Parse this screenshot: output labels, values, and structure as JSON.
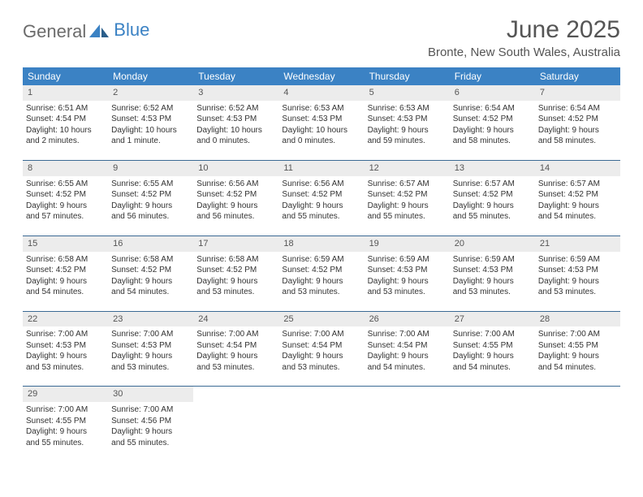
{
  "logo": {
    "text1": "General",
    "text2": "Blue"
  },
  "title": "June 2025",
  "subtitle": "Bronte, New South Wales, Australia",
  "colors": {
    "header_bg": "#3b82c4",
    "header_text": "#ffffff",
    "daynum_bg": "#ececec",
    "rule": "#3b6a94",
    "text": "#333333",
    "title_text": "#555555",
    "logo_gray": "#6b6b6b",
    "logo_blue": "#3b82c4",
    "page_bg": "#ffffff"
  },
  "fontsizes": {
    "title": 30,
    "subtitle": 15,
    "dow": 12,
    "daynum": 11,
    "body": 10
  },
  "dow": [
    "Sunday",
    "Monday",
    "Tuesday",
    "Wednesday",
    "Thursday",
    "Friday",
    "Saturday"
  ],
  "weeks": [
    [
      {
        "n": "1",
        "sr": "Sunrise: 6:51 AM",
        "ss": "Sunset: 4:54 PM",
        "d1": "Daylight: 10 hours",
        "d2": "and 2 minutes."
      },
      {
        "n": "2",
        "sr": "Sunrise: 6:52 AM",
        "ss": "Sunset: 4:53 PM",
        "d1": "Daylight: 10 hours",
        "d2": "and 1 minute."
      },
      {
        "n": "3",
        "sr": "Sunrise: 6:52 AM",
        "ss": "Sunset: 4:53 PM",
        "d1": "Daylight: 10 hours",
        "d2": "and 0 minutes."
      },
      {
        "n": "4",
        "sr": "Sunrise: 6:53 AM",
        "ss": "Sunset: 4:53 PM",
        "d1": "Daylight: 10 hours",
        "d2": "and 0 minutes."
      },
      {
        "n": "5",
        "sr": "Sunrise: 6:53 AM",
        "ss": "Sunset: 4:53 PM",
        "d1": "Daylight: 9 hours",
        "d2": "and 59 minutes."
      },
      {
        "n": "6",
        "sr": "Sunrise: 6:54 AM",
        "ss": "Sunset: 4:52 PM",
        "d1": "Daylight: 9 hours",
        "d2": "and 58 minutes."
      },
      {
        "n": "7",
        "sr": "Sunrise: 6:54 AM",
        "ss": "Sunset: 4:52 PM",
        "d1": "Daylight: 9 hours",
        "d2": "and 58 minutes."
      }
    ],
    [
      {
        "n": "8",
        "sr": "Sunrise: 6:55 AM",
        "ss": "Sunset: 4:52 PM",
        "d1": "Daylight: 9 hours",
        "d2": "and 57 minutes."
      },
      {
        "n": "9",
        "sr": "Sunrise: 6:55 AM",
        "ss": "Sunset: 4:52 PM",
        "d1": "Daylight: 9 hours",
        "d2": "and 56 minutes."
      },
      {
        "n": "10",
        "sr": "Sunrise: 6:56 AM",
        "ss": "Sunset: 4:52 PM",
        "d1": "Daylight: 9 hours",
        "d2": "and 56 minutes."
      },
      {
        "n": "11",
        "sr": "Sunrise: 6:56 AM",
        "ss": "Sunset: 4:52 PM",
        "d1": "Daylight: 9 hours",
        "d2": "and 55 minutes."
      },
      {
        "n": "12",
        "sr": "Sunrise: 6:57 AM",
        "ss": "Sunset: 4:52 PM",
        "d1": "Daylight: 9 hours",
        "d2": "and 55 minutes."
      },
      {
        "n": "13",
        "sr": "Sunrise: 6:57 AM",
        "ss": "Sunset: 4:52 PM",
        "d1": "Daylight: 9 hours",
        "d2": "and 55 minutes."
      },
      {
        "n": "14",
        "sr": "Sunrise: 6:57 AM",
        "ss": "Sunset: 4:52 PM",
        "d1": "Daylight: 9 hours",
        "d2": "and 54 minutes."
      }
    ],
    [
      {
        "n": "15",
        "sr": "Sunrise: 6:58 AM",
        "ss": "Sunset: 4:52 PM",
        "d1": "Daylight: 9 hours",
        "d2": "and 54 minutes."
      },
      {
        "n": "16",
        "sr": "Sunrise: 6:58 AM",
        "ss": "Sunset: 4:52 PM",
        "d1": "Daylight: 9 hours",
        "d2": "and 54 minutes."
      },
      {
        "n": "17",
        "sr": "Sunrise: 6:58 AM",
        "ss": "Sunset: 4:52 PM",
        "d1": "Daylight: 9 hours",
        "d2": "and 53 minutes."
      },
      {
        "n": "18",
        "sr": "Sunrise: 6:59 AM",
        "ss": "Sunset: 4:52 PM",
        "d1": "Daylight: 9 hours",
        "d2": "and 53 minutes."
      },
      {
        "n": "19",
        "sr": "Sunrise: 6:59 AM",
        "ss": "Sunset: 4:53 PM",
        "d1": "Daylight: 9 hours",
        "d2": "and 53 minutes."
      },
      {
        "n": "20",
        "sr": "Sunrise: 6:59 AM",
        "ss": "Sunset: 4:53 PM",
        "d1": "Daylight: 9 hours",
        "d2": "and 53 minutes."
      },
      {
        "n": "21",
        "sr": "Sunrise: 6:59 AM",
        "ss": "Sunset: 4:53 PM",
        "d1": "Daylight: 9 hours",
        "d2": "and 53 minutes."
      }
    ],
    [
      {
        "n": "22",
        "sr": "Sunrise: 7:00 AM",
        "ss": "Sunset: 4:53 PM",
        "d1": "Daylight: 9 hours",
        "d2": "and 53 minutes."
      },
      {
        "n": "23",
        "sr": "Sunrise: 7:00 AM",
        "ss": "Sunset: 4:53 PM",
        "d1": "Daylight: 9 hours",
        "d2": "and 53 minutes."
      },
      {
        "n": "24",
        "sr": "Sunrise: 7:00 AM",
        "ss": "Sunset: 4:54 PM",
        "d1": "Daylight: 9 hours",
        "d2": "and 53 minutes."
      },
      {
        "n": "25",
        "sr": "Sunrise: 7:00 AM",
        "ss": "Sunset: 4:54 PM",
        "d1": "Daylight: 9 hours",
        "d2": "and 53 minutes."
      },
      {
        "n": "26",
        "sr": "Sunrise: 7:00 AM",
        "ss": "Sunset: 4:54 PM",
        "d1": "Daylight: 9 hours",
        "d2": "and 54 minutes."
      },
      {
        "n": "27",
        "sr": "Sunrise: 7:00 AM",
        "ss": "Sunset: 4:55 PM",
        "d1": "Daylight: 9 hours",
        "d2": "and 54 minutes."
      },
      {
        "n": "28",
        "sr": "Sunrise: 7:00 AM",
        "ss": "Sunset: 4:55 PM",
        "d1": "Daylight: 9 hours",
        "d2": "and 54 minutes."
      }
    ],
    [
      {
        "n": "29",
        "sr": "Sunrise: 7:00 AM",
        "ss": "Sunset: 4:55 PM",
        "d1": "Daylight: 9 hours",
        "d2": "and 55 minutes."
      },
      {
        "n": "30",
        "sr": "Sunrise: 7:00 AM",
        "ss": "Sunset: 4:56 PM",
        "d1": "Daylight: 9 hours",
        "d2": "and 55 minutes."
      },
      null,
      null,
      null,
      null,
      null
    ]
  ]
}
